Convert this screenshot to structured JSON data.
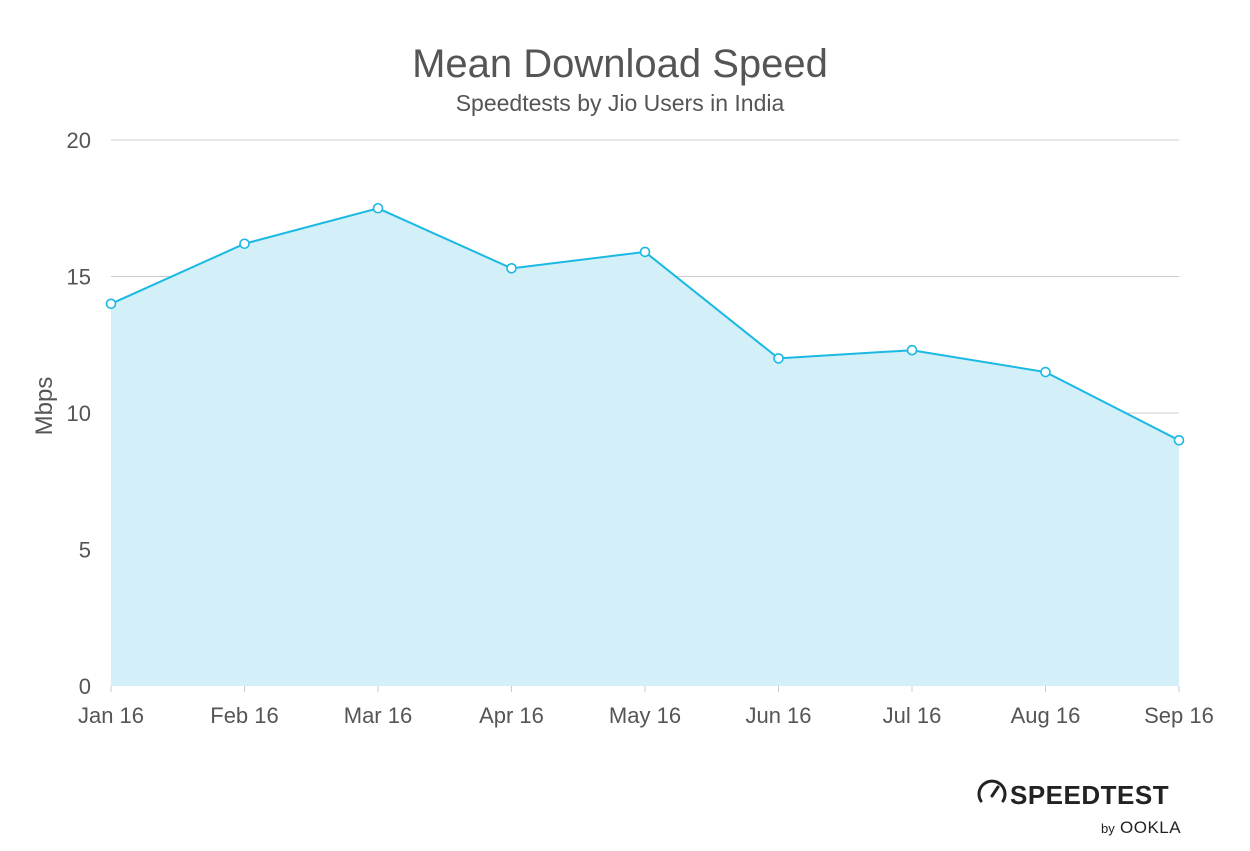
{
  "chart_data": {
    "type": "area",
    "title": "Mean Download Speed",
    "subtitle": "Speedtests by Jio Users in India",
    "xlabel": "",
    "ylabel": "Mbps",
    "categories": [
      "Jan 16",
      "Feb 16",
      "Mar 16",
      "Apr 16",
      "May 16",
      "Jun 16",
      "Jul 16",
      "Aug 16",
      "Sep 16"
    ],
    "series": [
      {
        "values": [
          14.0,
          16.2,
          17.5,
          15.3,
          15.9,
          12.0,
          12.3,
          11.5,
          9.0
        ]
      }
    ],
    "ylim": [
      0,
      20
    ],
    "yticks": [
      0,
      5,
      10,
      15,
      20
    ],
    "ytick_labels": [
      "0",
      "5",
      "10",
      "15",
      "20"
    ],
    "grid": true,
    "legend": "none",
    "colors": {
      "line": "#1ab9e3",
      "fill": "#d3eff8",
      "grid": "#cccccc",
      "text": "#555555"
    }
  },
  "branding": {
    "logo_main": "SPEEDTEST",
    "logo_by": "by",
    "logo_company": "OOKLA",
    "logo_icon": "speedometer-gauge-icon"
  }
}
